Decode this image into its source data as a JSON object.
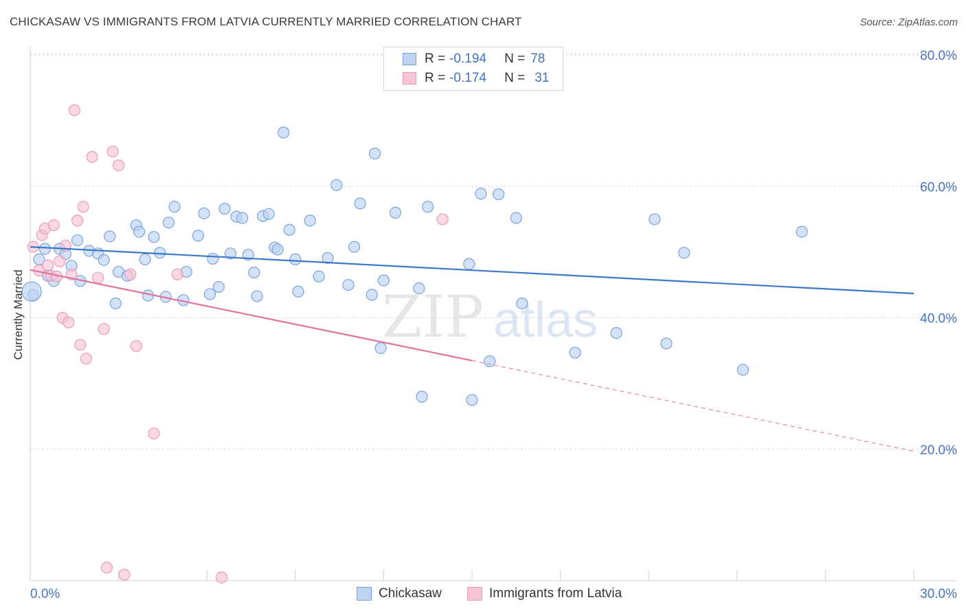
{
  "title": "CHICKASAW VS IMMIGRANTS FROM LATVIA CURRENTLY MARRIED CORRELATION CHART",
  "source": "Source: ZipAtlas.com",
  "colors": {
    "blue_fill": "#bcd3f2",
    "blue_stroke": "#7aa3dc",
    "blue_line": "#3b78c8",
    "pink_fill": "#f8c5d6",
    "pink_stroke": "#ec9bb7",
    "pink_line": "#e4709c",
    "grid": "#d9d9d9",
    "axis_text": "#4272c4"
  },
  "legend": {
    "rows": [
      {
        "r_label": "R = ",
        "r_value": "-0.194",
        "n_label": "N = ",
        "n_value": "78"
      },
      {
        "r_label": "R = ",
        "r_value": "-0.174",
        "n_label": "N = ",
        "n_value": "31"
      }
    ]
  },
  "bottom_legend": {
    "series1": "Chickasaw",
    "series2": "Immigrants from Latvia"
  },
  "watermark": {
    "part1": "ZIP",
    "part2": "atlas"
  },
  "chart_data": {
    "type": "scatter",
    "title": "CHICKASAW VS IMMIGRANTS FROM LATVIA CURRENTLY MARRIED CORRELATION CHART",
    "xlabel": "",
    "ylabel": "Currently Married",
    "xlim": [
      0,
      30
    ],
    "ylim": [
      0,
      80
    ],
    "x_tick_labels": [
      "0.0%",
      "30.0%"
    ],
    "y_ticks": [
      20,
      40,
      60,
      80
    ],
    "y_tick_labels": [
      "20.0%",
      "40.0%",
      "60.0%",
      "80.0%"
    ],
    "grid": true,
    "series": [
      {
        "name": "Chickasaw",
        "color": "#bcd3f2",
        "trend": {
          "x": [
            0,
            30
          ],
          "y": [
            50.8,
            43.7
          ],
          "dashed_from": null
        },
        "points": [
          [
            0.1,
            43.5
          ],
          [
            0.3,
            48.9
          ],
          [
            0.5,
            50.5
          ],
          [
            0.6,
            46.4
          ],
          [
            0.8,
            45.6
          ],
          [
            1.0,
            50.5
          ],
          [
            1.2,
            49.7
          ],
          [
            1.4,
            47.9
          ],
          [
            1.7,
            45.6
          ],
          [
            1.6,
            51.8
          ],
          [
            2.0,
            50.2
          ],
          [
            2.3,
            49.8
          ],
          [
            2.5,
            48.8
          ],
          [
            2.7,
            52.4
          ],
          [
            2.9,
            42.2
          ],
          [
            3.0,
            47.0
          ],
          [
            3.3,
            46.4
          ],
          [
            3.6,
            54.1
          ],
          [
            3.7,
            53.1
          ],
          [
            3.9,
            48.9
          ],
          [
            4.0,
            43.4
          ],
          [
            4.2,
            52.3
          ],
          [
            4.4,
            49.9
          ],
          [
            4.6,
            43.2
          ],
          [
            4.7,
            54.5
          ],
          [
            4.9,
            56.9
          ],
          [
            5.2,
            42.7
          ],
          [
            5.3,
            47.0
          ],
          [
            5.7,
            52.5
          ],
          [
            5.9,
            55.9
          ],
          [
            6.1,
            43.6
          ],
          [
            6.2,
            49.0
          ],
          [
            6.4,
            44.7
          ],
          [
            6.6,
            56.6
          ],
          [
            6.8,
            49.8
          ],
          [
            7.0,
            55.4
          ],
          [
            7.2,
            55.2
          ],
          [
            7.4,
            49.6
          ],
          [
            7.6,
            46.9
          ],
          [
            7.7,
            43.3
          ],
          [
            7.9,
            55.5
          ],
          [
            8.1,
            55.8
          ],
          [
            8.3,
            50.7
          ],
          [
            8.4,
            50.4
          ],
          [
            8.6,
            68.2
          ],
          [
            8.8,
            53.4
          ],
          [
            9.0,
            48.9
          ],
          [
            9.1,
            44.0
          ],
          [
            9.5,
            54.8
          ],
          [
            9.8,
            46.3
          ],
          [
            10.1,
            49.1
          ],
          [
            10.4,
            60.2
          ],
          [
            10.8,
            45.0
          ],
          [
            11.0,
            50.8
          ],
          [
            11.2,
            57.4
          ],
          [
            11.6,
            43.5
          ],
          [
            11.7,
            65.0
          ],
          [
            11.9,
            35.4
          ],
          [
            12.0,
            45.7
          ],
          [
            12.4,
            56.0
          ],
          [
            13.2,
            44.5
          ],
          [
            13.3,
            28.0
          ],
          [
            13.5,
            56.9
          ],
          [
            14.9,
            48.2
          ],
          [
            15.0,
            27.5
          ],
          [
            15.3,
            58.9
          ],
          [
            15.6,
            33.4
          ],
          [
            15.9,
            58.8
          ],
          [
            16.5,
            55.2
          ],
          [
            16.7,
            42.2
          ],
          [
            18.5,
            34.7
          ],
          [
            19.9,
            37.7
          ],
          [
            21.2,
            55.0
          ],
          [
            21.6,
            36.1
          ],
          [
            22.2,
            49.9
          ],
          [
            24.2,
            32.1
          ],
          [
            26.2,
            53.1
          ],
          [
            0.05,
            44.0
          ]
        ]
      },
      {
        "name": "Immigrants from Latvia",
        "color": "#f8c5d6",
        "trend": {
          "x": [
            0,
            30
          ],
          "y": [
            47.3,
            19.7
          ],
          "dashed_from": 15.0
        },
        "points": [
          [
            0.1,
            50.8
          ],
          [
            0.3,
            47.2
          ],
          [
            0.4,
            52.6
          ],
          [
            0.5,
            53.6
          ],
          [
            0.6,
            48.0
          ],
          [
            0.7,
            46.4
          ],
          [
            0.8,
            54.1
          ],
          [
            0.9,
            46.3
          ],
          [
            1.0,
            48.6
          ],
          [
            1.1,
            40.0
          ],
          [
            1.2,
            51.0
          ],
          [
            1.3,
            39.3
          ],
          [
            1.4,
            46.6
          ],
          [
            1.5,
            71.6
          ],
          [
            1.6,
            54.8
          ],
          [
            1.7,
            35.9
          ],
          [
            1.8,
            56.9
          ],
          [
            1.9,
            33.8
          ],
          [
            2.1,
            64.5
          ],
          [
            2.3,
            46.1
          ],
          [
            2.5,
            38.3
          ],
          [
            2.6,
            2.0
          ],
          [
            2.8,
            65.3
          ],
          [
            3.0,
            63.2
          ],
          [
            3.2,
            0.9
          ],
          [
            3.4,
            46.6
          ],
          [
            3.6,
            35.7
          ],
          [
            4.2,
            22.4
          ],
          [
            5.0,
            46.6
          ],
          [
            6.5,
            0.5
          ],
          [
            14.0,
            55.0
          ]
        ]
      }
    ]
  }
}
